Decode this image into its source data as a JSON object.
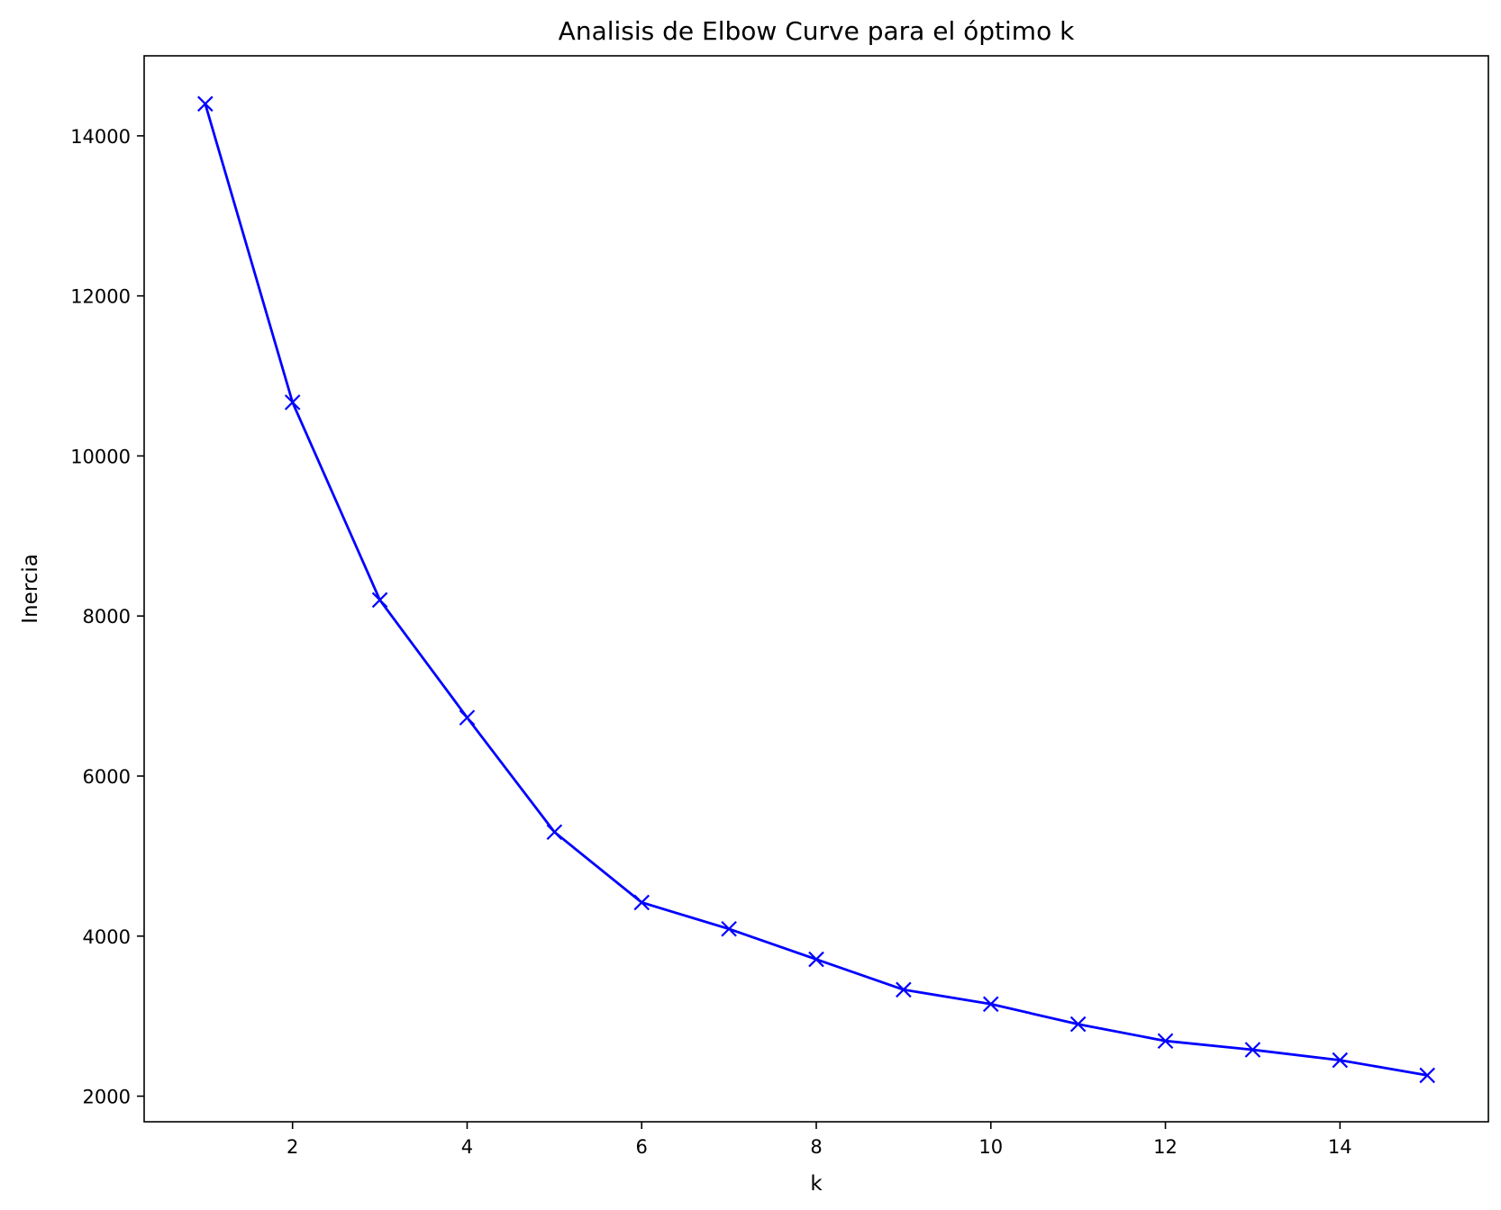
{
  "chart_data": {
    "type": "line",
    "title": "Analisis de Elbow Curve para el óptimo k",
    "xlabel": "k",
    "ylabel": "Inercia",
    "xlim": [
      0.3,
      15.7
    ],
    "ylim": [
      1680,
      15000
    ],
    "xticks": [
      2,
      4,
      6,
      8,
      10,
      12,
      14
    ],
    "yticks": [
      2000,
      4000,
      6000,
      8000,
      10000,
      12000,
      14000
    ],
    "grid": false,
    "marker": "x",
    "color": "#0000ff",
    "series": [
      {
        "x": [
          1,
          2,
          3,
          4,
          5,
          6,
          7,
          8,
          9,
          10,
          11,
          12,
          13,
          14,
          15
        ],
        "values": [
          14400,
          10670,
          8200,
          6730,
          5300,
          4420,
          4090,
          3710,
          3330,
          3150,
          2900,
          2690,
          2580,
          2450,
          2260
        ]
      }
    ]
  }
}
